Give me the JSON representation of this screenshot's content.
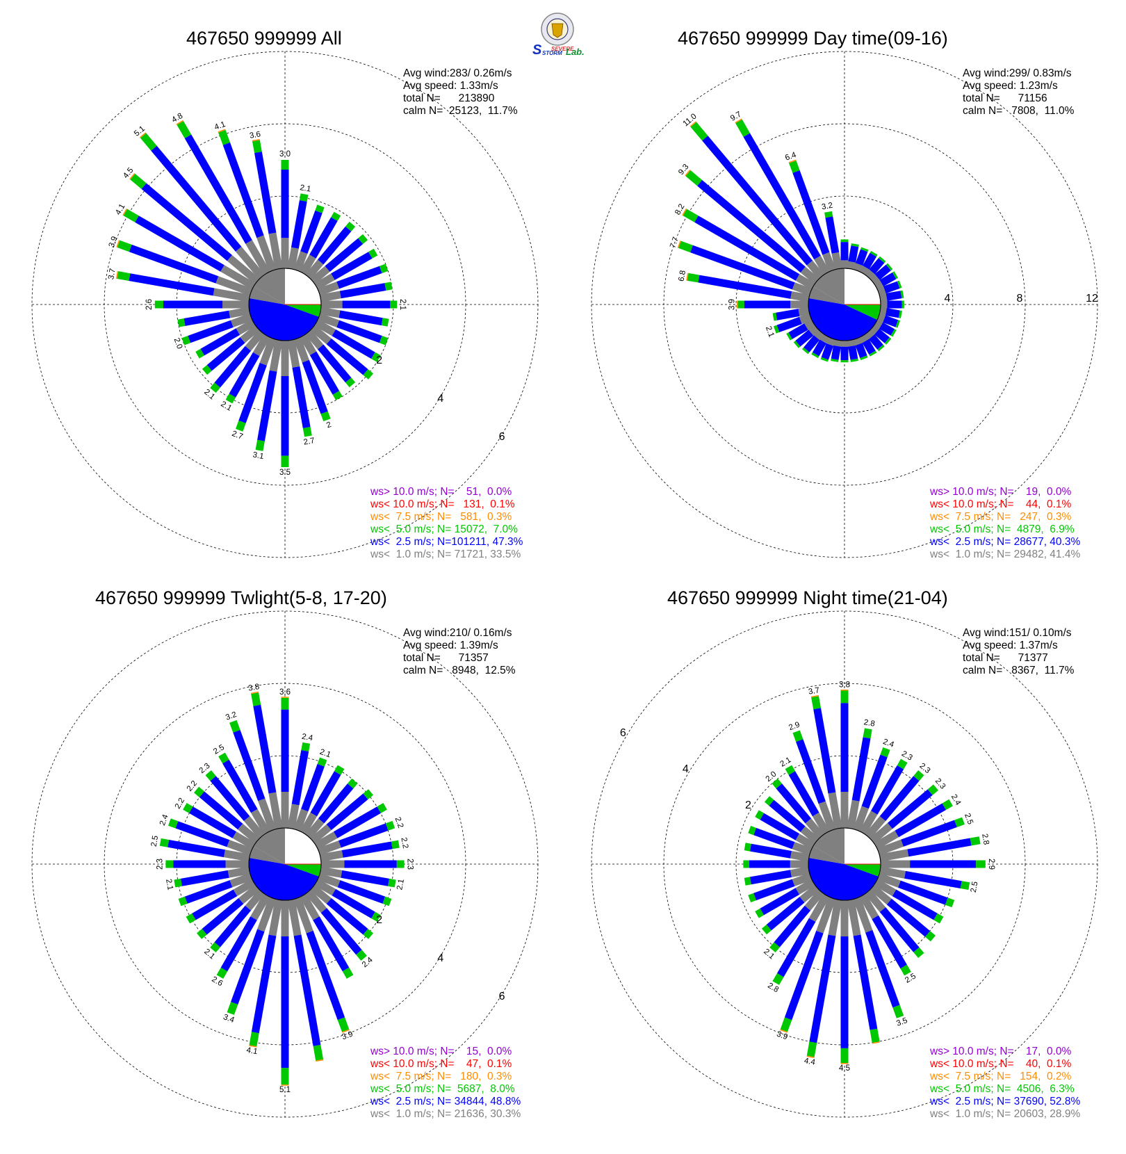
{
  "logo": {
    "line1": "SEVERE",
    "line2": "STORM",
    "line3": "Lab."
  },
  "legend_colors": {
    "ge10": "#9400d3",
    "lt10": "#ff0000",
    "lt7_5": "#ff8c00",
    "lt5": "#00c800",
    "lt2_5": "#0000ff",
    "lt1": "#808080"
  },
  "chart_data": [
    {
      "type": "polar-bar",
      "title": "467650 999999 All",
      "ring_unit": "percent",
      "rings": [
        2,
        4,
        6
      ],
      "ring_labels": [
        "2",
        "4",
        "6"
      ],
      "stats": {
        "avg_wind": "Avg wind:283/ 0.26m/s",
        "avg_speed": "Avg speed: 1.33m/s",
        "total": "total N=      213890",
        "calm": "calm N=  25123,  11.7%"
      },
      "legend": {
        "ge10": "ws> 10.0 m/s; N=    51,  0.0%",
        "lt10": "ws< 10.0 m/s; N=   131,  0.1%",
        "lt7_5": "ws<  7.5 m/s; N=   581,  0.3%",
        "lt5": "ws<  5.0 m/s; N= 15072,  7.0%",
        "lt2_5": "ws<  2.5 m/s; N=101211, 47.3%",
        "lt1": "ws<  1.0 m/s; N= 71721, 33.5%"
      },
      "calm_pie": {
        "lt1_deg": 60,
        "lt2_5_deg": 170,
        "lt5_deg": 20
      },
      "directions_deg": [
        0,
        10,
        20,
        30,
        40,
        50,
        60,
        70,
        80,
        90,
        100,
        110,
        120,
        130,
        140,
        150,
        160,
        170,
        180,
        190,
        200,
        210,
        220,
        230,
        240,
        250,
        260,
        270,
        280,
        290,
        300,
        310,
        320,
        330,
        340,
        350
      ],
      "totals": [
        3.0,
        2.1,
        1.9,
        1.9,
        1.9,
        1.9,
        1.9,
        2.0,
        2.0,
        2.1,
        1.9,
        2.0,
        2.0,
        2.1,
        1.9,
        2.0,
        2.4,
        2.7,
        3.5,
        3.1,
        2.7,
        2.1,
        2.1,
        1.9,
        1.8,
        2.0,
        2.0,
        2.6,
        3.7,
        3.9,
        4.1,
        4.5,
        5.1,
        4.8,
        4.1,
        3.6
      ],
      "labeled": [
        0,
        1,
        9,
        16,
        17,
        18,
        19,
        20,
        21,
        22,
        25,
        27,
        28,
        29,
        30,
        31,
        32,
        33,
        34,
        35
      ],
      "label_texts": {
        "0": "3.0",
        "1": "2.1",
        "9": "2.1",
        "16": "2",
        "17": "2.7",
        "18": "3.5",
        "19": "3.1",
        "20": "2.7",
        "21": "2.1",
        "22": "2.1",
        "25": "2.0",
        "27": "2.6",
        "28": "3.7",
        "29": "3.9",
        "30": "4.1",
        "31": "4.5",
        "32": "5.1",
        "33": "4.8",
        "34": "4.1",
        "35": "3.6"
      }
    },
    {
      "type": "polar-bar",
      "title": "467650 999999 Day time(09-16)",
      "ring_unit": "percent",
      "rings": [
        4,
        8,
        12
      ],
      "ring_labels": [
        "4",
        "8",
        "12"
      ],
      "stats": {
        "avg_wind": "Avg wind:299/ 0.83m/s",
        "avg_speed": "Avg speed: 1.23m/s",
        "total": "total N=      71156",
        "calm": "calm N=   7808,  11.0%"
      },
      "legend": {
        "ge10": "ws> 10.0 m/s; N=    19,  0.0%",
        "lt10": "ws< 10.0 m/s; N=    44,  0.1%",
        "lt7_5": "ws<  7.5 m/s; N=   247,  0.3%",
        "lt5": "ws<  5.0 m/s; N=  4879,  6.9%",
        "lt2_5": "ws<  2.5 m/s; N= 28677, 40.3%",
        "lt1": "ws<  1.0 m/s; N= 29482, 41.4%"
      },
      "calm_pie": {
        "lt1_deg": 60,
        "lt2_5_deg": 165,
        "lt5_deg": 25
      },
      "directions_deg": [
        0,
        10,
        20,
        30,
        40,
        50,
        60,
        70,
        80,
        90,
        100,
        110,
        120,
        130,
        140,
        150,
        160,
        170,
        180,
        190,
        200,
        210,
        220,
        230,
        240,
        250,
        260,
        270,
        280,
        290,
        300,
        310,
        320,
        330,
        340,
        350
      ],
      "totals": [
        1.6,
        1.4,
        1.3,
        1.3,
        1.3,
        1.3,
        1.3,
        1.3,
        1.3,
        1.3,
        1.2,
        1.2,
        1.2,
        1.2,
        1.2,
        1.2,
        1.2,
        1.2,
        1.2,
        1.2,
        1.3,
        1.3,
        1.4,
        1.5,
        1.6,
        2.1,
        2.0,
        3.9,
        6.8,
        7.7,
        8.2,
        9.3,
        11.0,
        9.7,
        6.4,
        3.2
      ],
      "labeled": [
        25,
        27,
        28,
        29,
        30,
        31,
        32,
        33,
        34,
        35
      ],
      "label_texts": {
        "25": "2.1",
        "27": "3.9",
        "28": "6.8",
        "29": "7.7",
        "30": "8.2",
        "31": "9.3",
        "32": "11.0",
        "33": "9.7",
        "34": "6.4",
        "35": "3.2"
      }
    },
    {
      "type": "polar-bar",
      "title": "467650 999999 Twlight(5-8, 17-20)",
      "ring_unit": "percent",
      "rings": [
        2,
        4,
        6
      ],
      "ring_labels": [
        "2",
        "4",
        "6"
      ],
      "stats": {
        "avg_wind": "Avg wind:210/ 0.16m/s",
        "avg_speed": "Avg speed: 1.39m/s",
        "total": "total N=      71357",
        "calm": "calm N=   8948,  12.5%"
      },
      "legend": {
        "ge10": "ws> 10.0 m/s; N=    15,  0.0%",
        "lt10": "ws< 10.0 m/s; N=    47,  0.1%",
        "lt7_5": "ws<  7.5 m/s; N=   180,  0.3%",
        "lt5": "ws<  5.0 m/s; N=  5687,  8.0%",
        "lt2_5": "ws<  2.5 m/s; N= 34844, 48.8%",
        "lt1": "ws<  1.0 m/s; N= 21636, 30.3%"
      },
      "calm_pie": {
        "lt1_deg": 60,
        "lt2_5_deg": 170,
        "lt5_deg": 20
      },
      "directions_deg": [
        0,
        10,
        20,
        30,
        40,
        50,
        60,
        70,
        80,
        90,
        100,
        110,
        120,
        130,
        140,
        150,
        160,
        170,
        180,
        190,
        200,
        210,
        220,
        230,
        240,
        250,
        260,
        270,
        280,
        290,
        300,
        310,
        320,
        330,
        340,
        350
      ],
      "totals": [
        3.6,
        2.4,
        2.1,
        2.1,
        2.0,
        2.1,
        2.2,
        2.2,
        2.2,
        2.3,
        2.1,
        2.1,
        2.0,
        2.1,
        2.4,
        2.6,
        3.9,
        4.5,
        5.1,
        4.1,
        3.4,
        2.6,
        2.1,
        2.1,
        2.1,
        2.1,
        2.1,
        2.3,
        2.5,
        2.4,
        2.2,
        2.2,
        2.3,
        2.5,
        3.2,
        3.8
      ],
      "labeled": [
        0,
        1,
        2,
        7,
        8,
        9,
        10,
        14,
        16,
        18,
        19,
        20,
        21,
        22,
        26,
        27,
        28,
        29,
        30,
        31,
        32,
        33,
        34,
        35
      ],
      "label_texts": {
        "0": "3.6",
        "1": "2.4",
        "2": "2.1",
        "7": "2.2",
        "8": "2.2",
        "9": "2.3",
        "10": "2.1",
        "14": "2.4",
        "16": "3.9",
        "18": "5.1",
        "19": "4.1",
        "20": "3.4",
        "21": "2.6",
        "22": "2.1",
        "26": "2.1",
        "27": "2.3",
        "28": "2.5",
        "29": "2.4",
        "30": "2.2",
        "31": "2.2",
        "32": "2.3",
        "33": "2.5",
        "34": "3.2",
        "35": "3.8"
      }
    },
    {
      "type": "polar-bar",
      "title": "467650 999999 Night time(21-04)",
      "ring_unit": "percent",
      "rings": [
        2,
        4,
        6
      ],
      "ring_labels": [
        "2",
        "4",
        "6"
      ],
      "stats": {
        "avg_wind": "Avg wind:151/ 0.10m/s",
        "avg_speed": "Avg speed: 1.37m/s",
        "total": "total N=      71377",
        "calm": "calm N=   8367,  11.7%"
      },
      "legend": {
        "ge10": "ws> 10.0 m/s; N=    17,  0.0%",
        "lt10": "ws< 10.0 m/s; N=    40,  0.1%",
        "lt7_5": "ws<  7.5 m/s; N=   154,  0.2%",
        "lt5": "ws<  5.0 m/s; N=  4506,  6.3%",
        "lt2_5": "ws<  2.5 m/s; N= 37690, 52.8%",
        "lt1": "ws<  1.0 m/s; N= 20603, 28.9%"
      },
      "calm_pie": {
        "lt1_deg": 60,
        "lt2_5_deg": 170,
        "lt5_deg": 20
      },
      "directions_deg": [
        0,
        10,
        20,
        30,
        40,
        50,
        60,
        70,
        80,
        90,
        100,
        110,
        120,
        130,
        140,
        150,
        160,
        170,
        180,
        190,
        200,
        210,
        220,
        230,
        240,
        250,
        260,
        270,
        280,
        290,
        300,
        310,
        320,
        330,
        340,
        350
      ],
      "totals": [
        3.8,
        2.8,
        2.4,
        2.3,
        2.3,
        2.3,
        2.4,
        2.5,
        2.8,
        2.9,
        2.5,
        2.2,
        2.1,
        2.2,
        2.3,
        2.5,
        3.5,
        4.0,
        4.5,
        4.4,
        3.9,
        2.8,
        2.1,
        1.9,
        1.8,
        1.8,
        1.8,
        1.8,
        1.8,
        1.8,
        1.8,
        1.8,
        2.0,
        2.1,
        2.9,
        3.7
      ],
      "labeled": [
        0,
        1,
        2,
        3,
        4,
        5,
        6,
        7,
        8,
        9,
        10,
        15,
        16,
        18,
        19,
        20,
        21,
        22,
        32,
        33,
        34,
        35
      ],
      "label_texts": {
        "0": "3.8",
        "1": "2.8",
        "2": "2.4",
        "3": "2.3",
        "4": "2.3",
        "5": "2.3",
        "6": "2.4",
        "7": "2.5",
        "8": "2.8",
        "9": "2.9",
        "10": "2.5",
        "15": "2.5",
        "16": "3.5",
        "18": "4.5",
        "19": "4.4",
        "20": "3.9",
        "21": "2.8",
        "22": "2.1",
        "32": "2.0",
        "33": "2.1",
        "34": "2.9",
        "35": "3.7"
      }
    }
  ]
}
